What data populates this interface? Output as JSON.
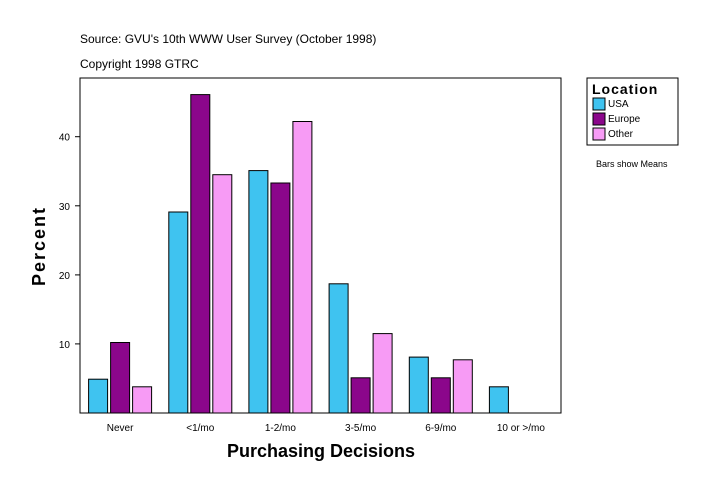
{
  "header": {
    "source": "Source: GVU's 10th WWW User Survey (October 1998)",
    "copyright": "Copyright 1998 GTRC"
  },
  "note": "Bars show Means",
  "chart_data": {
    "type": "bar",
    "title": "",
    "xlabel": "Purchasing Decisions",
    "ylabel": "Percent",
    "categories": [
      "Never",
      "<1/mo",
      "1-2/mo",
      "3-5/mo",
      "6-9/mo",
      "10 or >/mo"
    ],
    "series": [
      {
        "name": "USA",
        "color": "#3fc3f0",
        "values": [
          4.9,
          29.1,
          35.1,
          18.7,
          8.1,
          3.8
        ]
      },
      {
        "name": "Europe",
        "color": "#8b068b",
        "values": [
          10.2,
          46.1,
          33.3,
          5.1,
          5.1,
          null
        ]
      },
      {
        "name": "Other",
        "color": "#f79bf5",
        "values": [
          3.8,
          34.5,
          42.2,
          11.5,
          7.7,
          null
        ]
      }
    ],
    "ylim": [
      0,
      48.5
    ],
    "yticks": [
      10,
      20,
      30,
      40
    ],
    "grid": false,
    "legend": {
      "title": "Location",
      "position": "right"
    }
  }
}
